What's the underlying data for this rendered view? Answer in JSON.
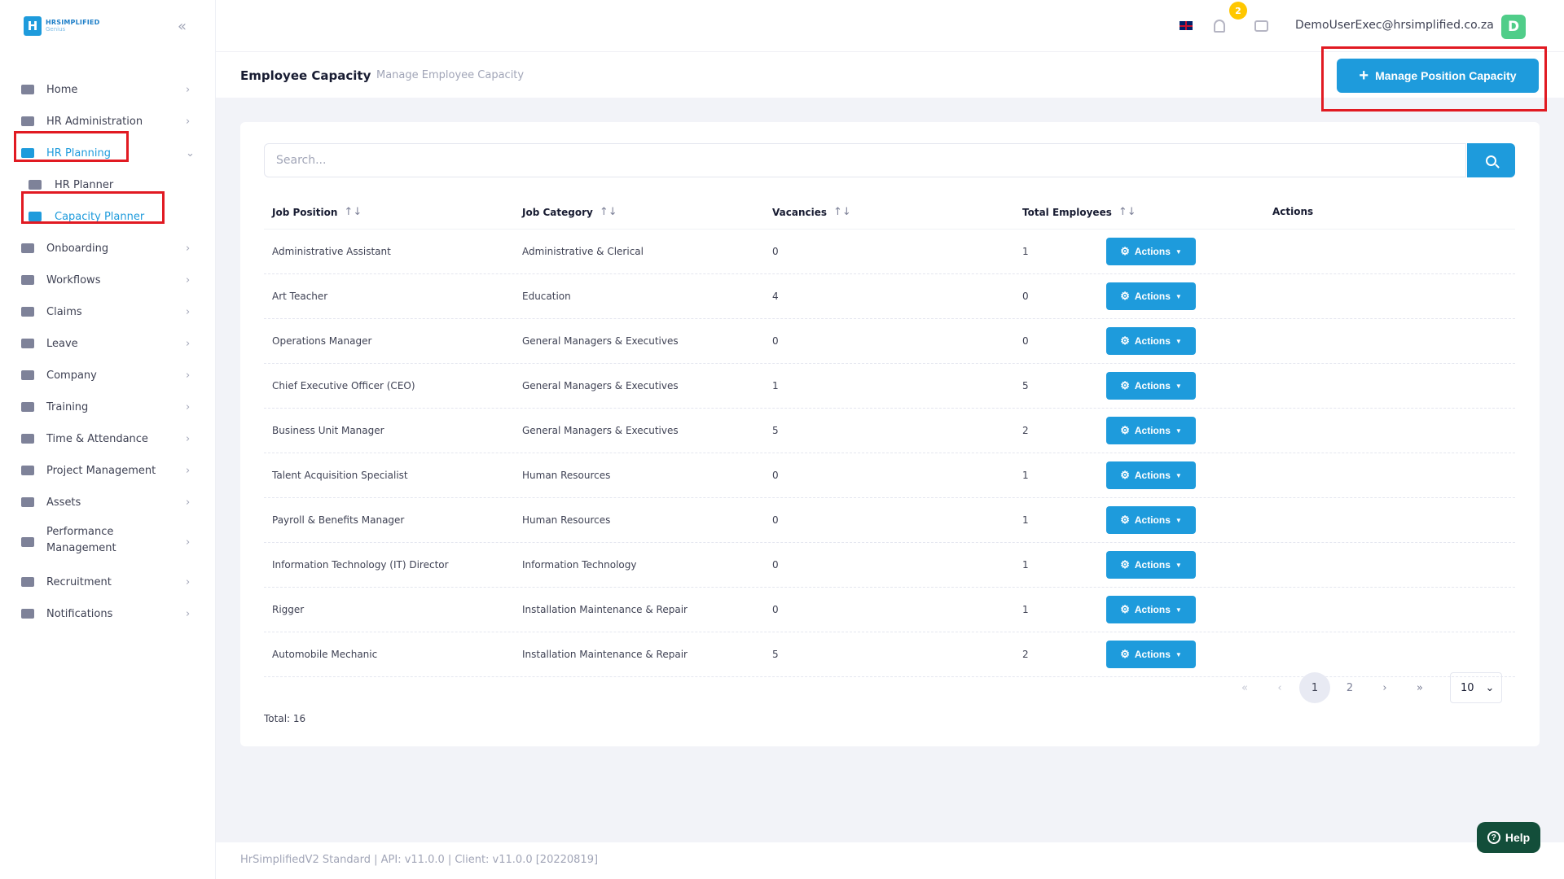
{
  "app": {
    "logo_brand": "HRSIMPLIFIED",
    "logo_sub": "Genius",
    "logo_mark": "H"
  },
  "sidebar": {
    "items": [
      {
        "label": "Home",
        "icon": "home-icon"
      },
      {
        "label": "HR Administration",
        "icon": "users-icon"
      },
      {
        "label": "HR Planning",
        "icon": "planning-icon"
      },
      {
        "label": "HR Planner",
        "icon": "calendar-icon"
      },
      {
        "label": "Capacity Planner",
        "icon": "capacity-icon"
      },
      {
        "label": "Onboarding",
        "icon": "flow-icon"
      },
      {
        "label": "Workflows",
        "icon": "list-icon"
      },
      {
        "label": "Claims",
        "icon": "folder-icon"
      },
      {
        "label": "Leave",
        "icon": "plane-icon"
      },
      {
        "label": "Company",
        "icon": "house-icon"
      },
      {
        "label": "Training",
        "icon": "board-icon"
      },
      {
        "label": "Time & Attendance",
        "icon": "clock-icon"
      },
      {
        "label": "Project Management",
        "icon": "briefcase-icon"
      },
      {
        "label": "Assets",
        "icon": "list-icon"
      },
      {
        "label": "Performance",
        "label2": "Management",
        "icon": "star-icon"
      },
      {
        "label": "Recruitment",
        "icon": "form-icon"
      },
      {
        "label": "Notifications",
        "icon": "broadcast-icon"
      }
    ]
  },
  "header": {
    "notification_count": "2",
    "user_email": "DemoUserExec@hrsimplified.co.za",
    "avatar_letter": "D"
  },
  "subheader": {
    "title": "Employee Capacity",
    "subtitle": "Manage Employee Capacity",
    "manage_button": "Manage Position Capacity"
  },
  "table": {
    "search_placeholder": "Search...",
    "columns": [
      "Job Position",
      "Job Category",
      "Vacancies",
      "Total Employees",
      "Actions"
    ],
    "action_label": "Actions",
    "rows": [
      [
        "Administrative Assistant",
        "Administrative & Clerical",
        "0",
        "1"
      ],
      [
        "Art Teacher",
        "Education",
        "4",
        "0"
      ],
      [
        "Operations Manager",
        "General Managers & Executives",
        "0",
        "0"
      ],
      [
        "Chief Executive Officer (CEO)",
        "General Managers & Executives",
        "1",
        "5"
      ],
      [
        "Business Unit Manager",
        "General Managers & Executives",
        "5",
        "2"
      ],
      [
        "Talent Acquisition Specialist",
        "Human Resources",
        "0",
        "1"
      ],
      [
        "Payroll & Benefits Manager",
        "Human Resources",
        "0",
        "1"
      ],
      [
        "Information Technology (IT) Director",
        "Information Technology",
        "0",
        "1"
      ],
      [
        "Rigger",
        "Installation Maintenance & Repair",
        "0",
        "1"
      ],
      [
        "Automobile Mechanic",
        "Installation Maintenance & Repair",
        "5",
        "2"
      ]
    ],
    "total": "Total: 16"
  },
  "pagination": {
    "first": "«",
    "prev": "‹",
    "pages": [
      "1",
      "2"
    ],
    "next": "›",
    "last": "»",
    "page_size": "10"
  },
  "footer": {
    "version": "HrSimplifiedV2 Standard | API: v11.0.0 | Client: v11.0.0 [20220819]",
    "help": "Help"
  }
}
